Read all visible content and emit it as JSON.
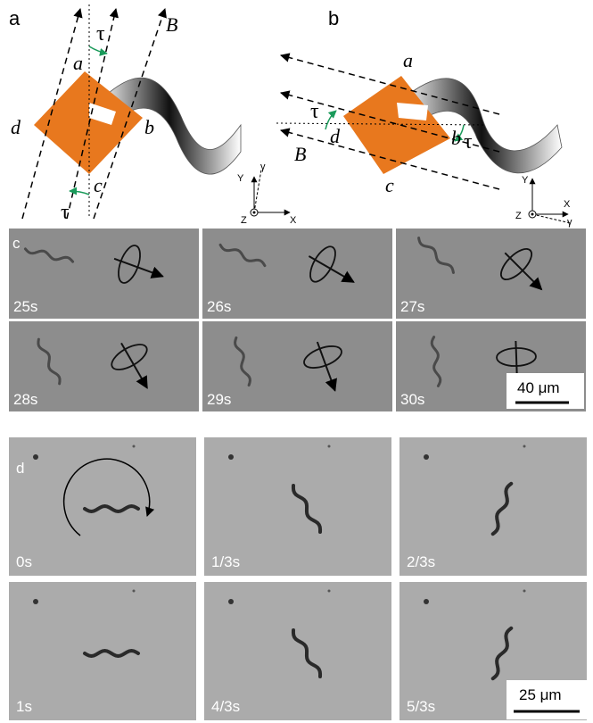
{
  "panel_a": {
    "label": "a",
    "tau": [
      "τ",
      "τ"
    ],
    "corners": [
      "a",
      "b",
      "c",
      "d"
    ],
    "field": "B",
    "axes": [
      "Y",
      "γ",
      "Z",
      "X"
    ]
  },
  "panel_b": {
    "label": "b",
    "tau": [
      "τ",
      "τ"
    ],
    "corners": [
      "a",
      "b",
      "c",
      "d"
    ],
    "field": "B",
    "axes": [
      "Y",
      "X",
      "Z",
      "γ"
    ]
  },
  "panel_c": {
    "label": "c",
    "frames": [
      "25s",
      "26s",
      "27s",
      "28s",
      "29s",
      "30s"
    ],
    "scale_bar": "40 μm"
  },
  "panel_d": {
    "label": "d",
    "frames": [
      "0s",
      "1/3s",
      "2/3s",
      "1s",
      "4/3s",
      "5/3s"
    ],
    "scale_bar": "25 μm"
  }
}
